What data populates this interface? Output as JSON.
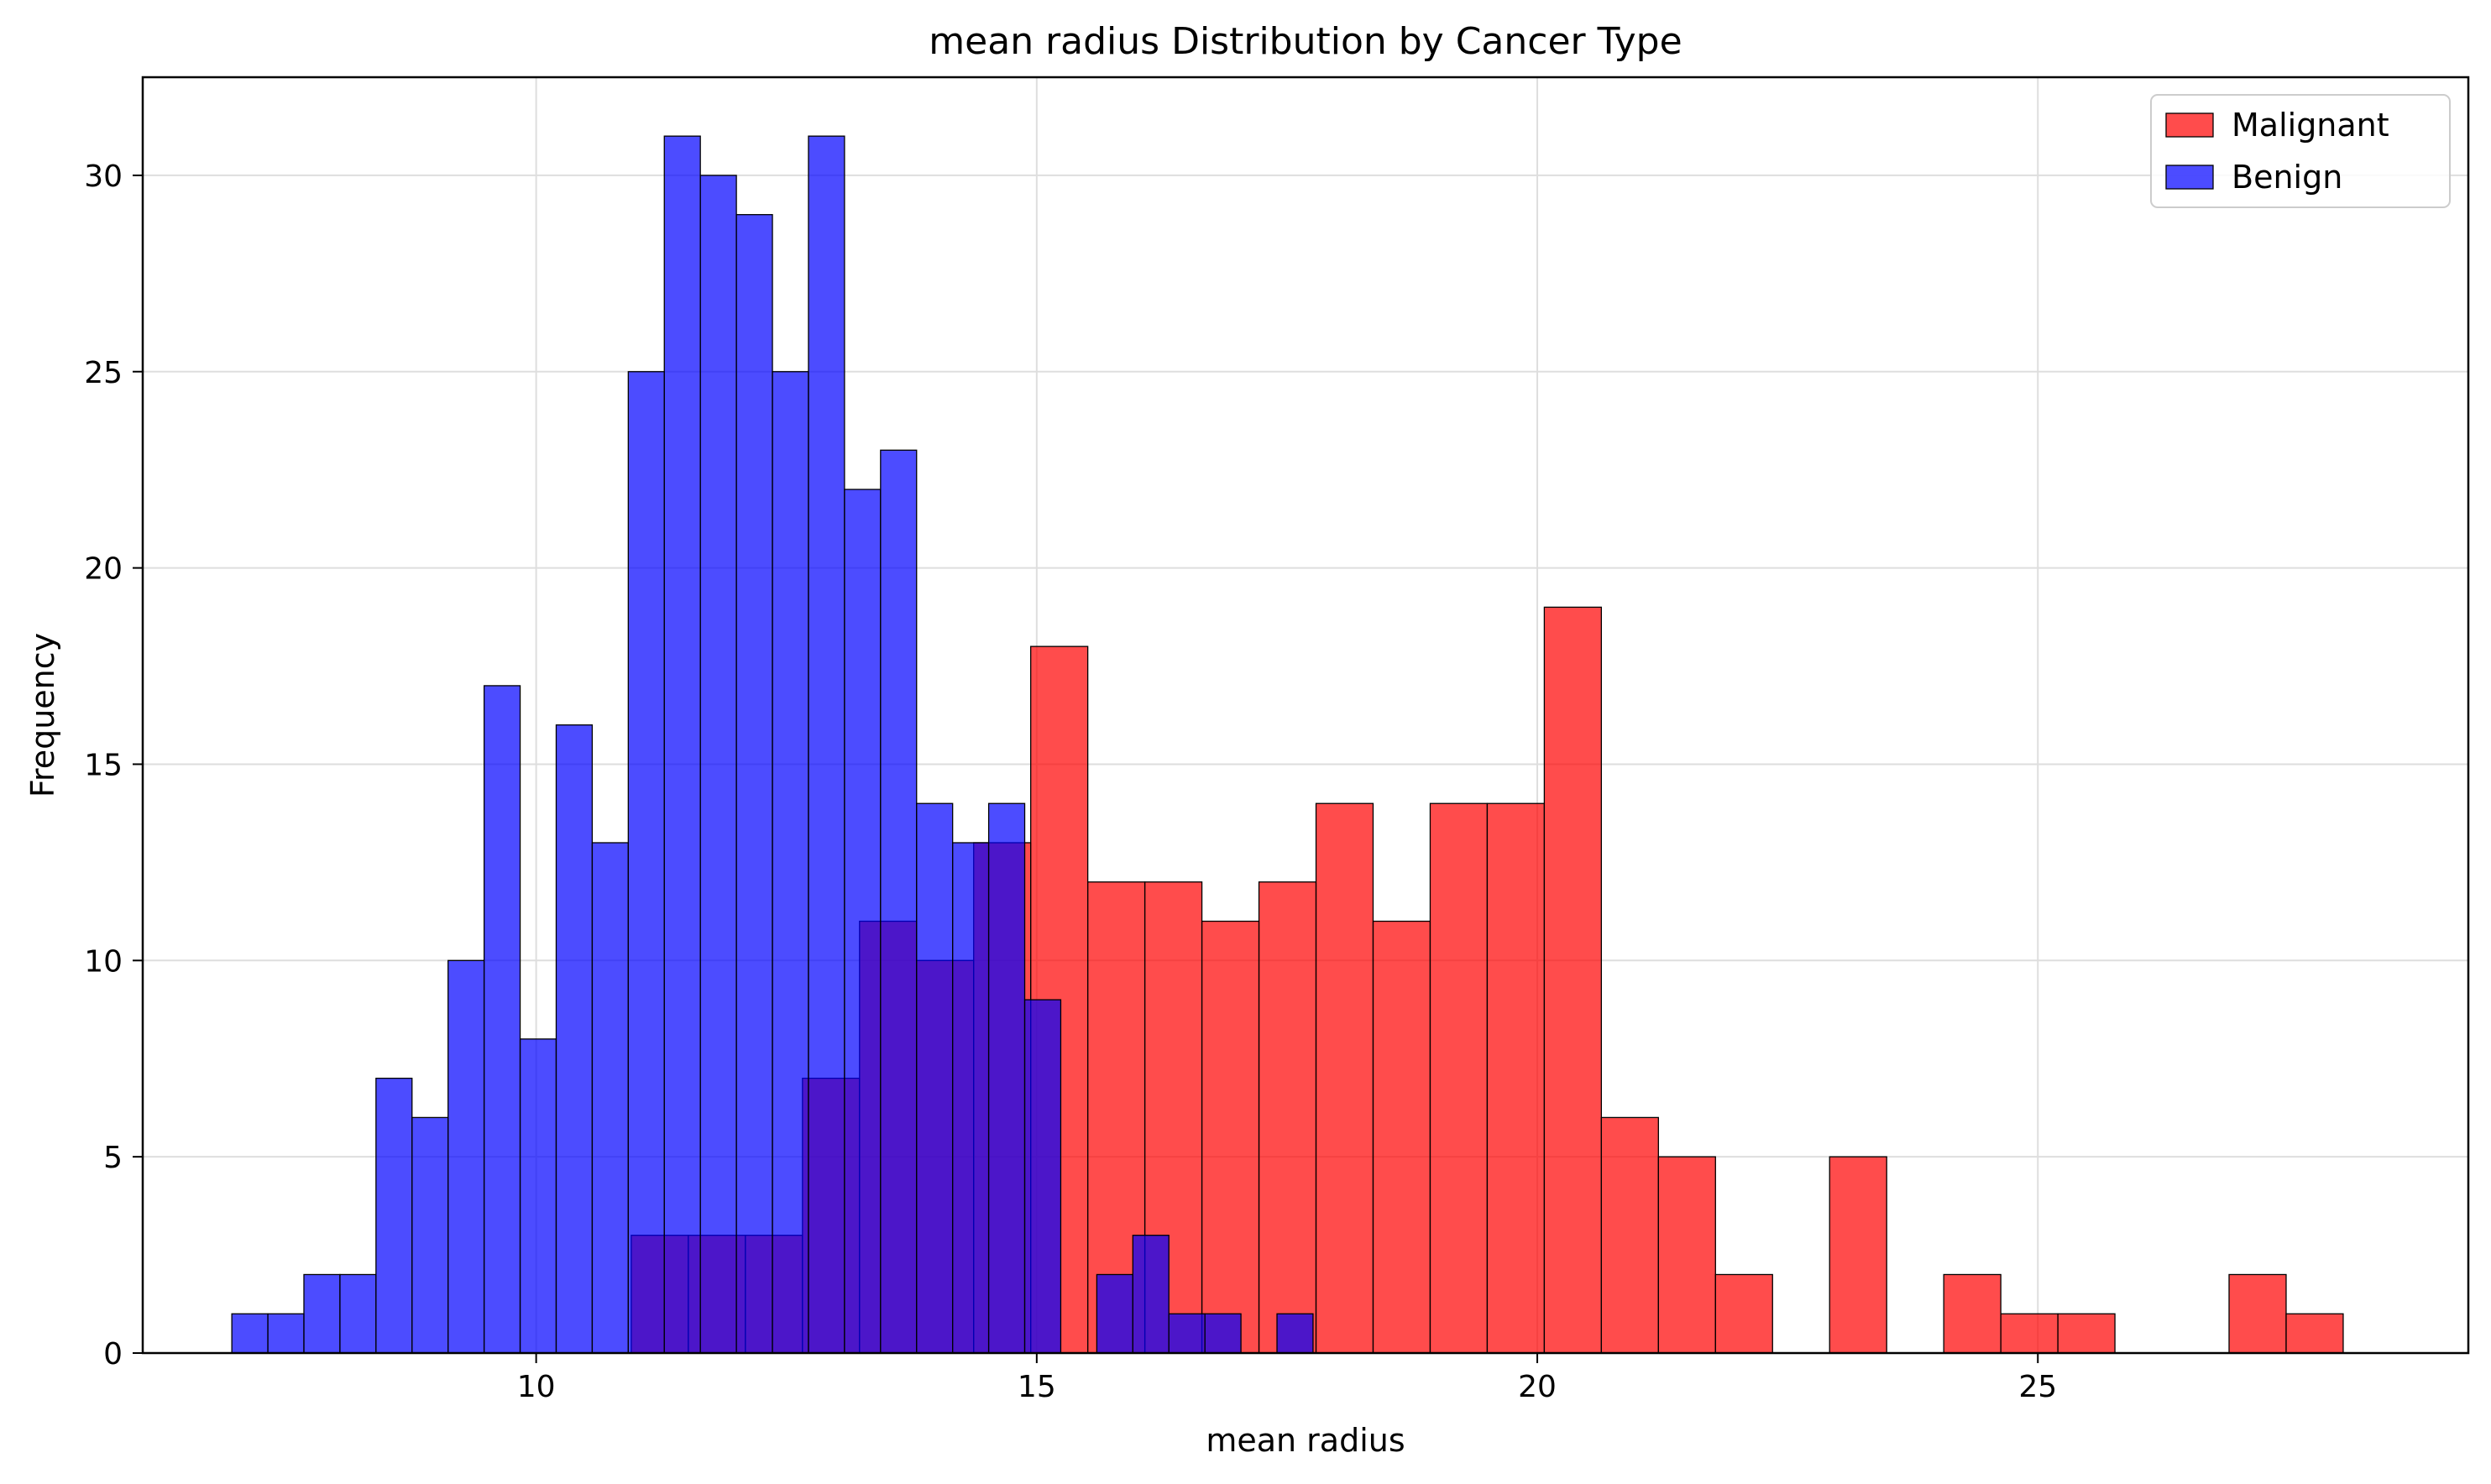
{
  "chart_data": {
    "type": "bar",
    "title": "mean radius Distribution by Cancer Type",
    "xlabel": "mean radius",
    "ylabel": "Frequency",
    "xlim": [
      6.07,
      29.3
    ],
    "ylim": [
      0,
      32.5
    ],
    "xticks": [
      10,
      15,
      20,
      25
    ],
    "yticks": [
      0,
      5,
      10,
      15,
      20,
      25,
      30
    ],
    "grid": true,
    "legend_position": "top-right",
    "series": [
      {
        "name": "Malignant",
        "color": "#ff0000",
        "opacity": 0.7,
        "bins": [
          {
            "x0": 10.95,
            "x1": 11.52,
            "count": 3
          },
          {
            "x0": 11.52,
            "x1": 12.09,
            "count": 3
          },
          {
            "x0": 12.09,
            "x1": 12.66,
            "count": 3
          },
          {
            "x0": 12.66,
            "x1": 13.23,
            "count": 7
          },
          {
            "x0": 13.23,
            "x1": 13.8,
            "count": 11
          },
          {
            "x0": 13.8,
            "x1": 14.37,
            "count": 10
          },
          {
            "x0": 14.37,
            "x1": 14.94,
            "count": 13
          },
          {
            "x0": 14.94,
            "x1": 15.51,
            "count": 18
          },
          {
            "x0": 15.51,
            "x1": 16.08,
            "count": 12
          },
          {
            "x0": 16.08,
            "x1": 16.65,
            "count": 12
          },
          {
            "x0": 16.65,
            "x1": 17.22,
            "count": 11
          },
          {
            "x0": 17.22,
            "x1": 17.79,
            "count": 12
          },
          {
            "x0": 17.79,
            "x1": 18.36,
            "count": 14
          },
          {
            "x0": 18.36,
            "x1": 18.93,
            "count": 11
          },
          {
            "x0": 18.93,
            "x1": 19.5,
            "count": 14
          },
          {
            "x0": 19.5,
            "x1": 20.07,
            "count": 14
          },
          {
            "x0": 20.07,
            "x1": 20.64,
            "count": 19
          },
          {
            "x0": 20.64,
            "x1": 21.21,
            "count": 6
          },
          {
            "x0": 21.21,
            "x1": 21.78,
            "count": 5
          },
          {
            "x0": 21.78,
            "x1": 22.35,
            "count": 2
          },
          {
            "x0": 22.92,
            "x1": 23.49,
            "count": 5
          },
          {
            "x0": 24.06,
            "x1": 24.63,
            "count": 2
          },
          {
            "x0": 24.63,
            "x1": 25.2,
            "count": 1
          },
          {
            "x0": 25.2,
            "x1": 25.77,
            "count": 1
          },
          {
            "x0": 26.91,
            "x1": 27.48,
            "count": 2
          },
          {
            "x0": 27.48,
            "x1": 28.05,
            "count": 1
          }
        ]
      },
      {
        "name": "Benign",
        "color": "#0000ff",
        "opacity": 0.7,
        "bins": [
          {
            "x0": 6.96,
            "x1": 7.32,
            "count": 1
          },
          {
            "x0": 7.32,
            "x1": 7.68,
            "count": 1
          },
          {
            "x0": 7.68,
            "x1": 8.04,
            "count": 2
          },
          {
            "x0": 8.04,
            "x1": 8.4,
            "count": 2
          },
          {
            "x0": 8.4,
            "x1": 8.76,
            "count": 7
          },
          {
            "x0": 8.76,
            "x1": 9.12,
            "count": 6
          },
          {
            "x0": 9.12,
            "x1": 9.48,
            "count": 10
          },
          {
            "x0": 9.48,
            "x1": 9.84,
            "count": 17
          },
          {
            "x0": 9.84,
            "x1": 10.2,
            "count": 8
          },
          {
            "x0": 10.2,
            "x1": 10.56,
            "count": 16
          },
          {
            "x0": 10.56,
            "x1": 10.92,
            "count": 13
          },
          {
            "x0": 10.92,
            "x1": 11.28,
            "count": 25
          },
          {
            "x0": 11.28,
            "x1": 11.64,
            "count": 31
          },
          {
            "x0": 11.64,
            "x1": 12.0,
            "count": 30
          },
          {
            "x0": 12.0,
            "x1": 12.36,
            "count": 29
          },
          {
            "x0": 12.36,
            "x1": 12.72,
            "count": 25
          },
          {
            "x0": 12.72,
            "x1": 13.08,
            "count": 31
          },
          {
            "x0": 13.08,
            "x1": 13.44,
            "count": 22
          },
          {
            "x0": 13.44,
            "x1": 13.8,
            "count": 23
          },
          {
            "x0": 13.8,
            "x1": 14.16,
            "count": 14
          },
          {
            "x0": 14.16,
            "x1": 14.52,
            "count": 13
          },
          {
            "x0": 14.52,
            "x1": 14.88,
            "count": 14
          },
          {
            "x0": 14.88,
            "x1": 15.24,
            "count": 9
          },
          {
            "x0": 15.6,
            "x1": 15.96,
            "count": 2
          },
          {
            "x0": 15.96,
            "x1": 16.32,
            "count": 3
          },
          {
            "x0": 16.32,
            "x1": 16.68,
            "count": 1
          },
          {
            "x0": 16.68,
            "x1": 17.04,
            "count": 1
          },
          {
            "x0": 17.4,
            "x1": 17.76,
            "count": 1
          }
        ]
      }
    ]
  }
}
